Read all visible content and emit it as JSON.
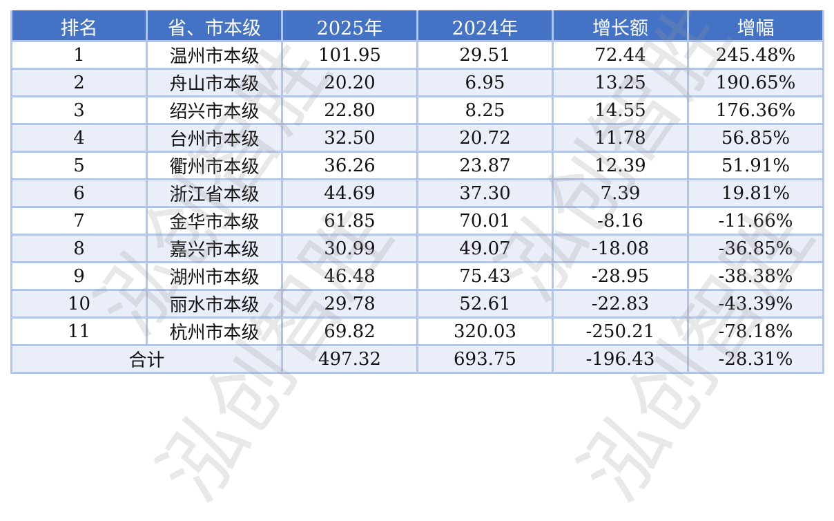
{
  "headers": [
    "排名",
    "省、市本级",
    "2025年",
    "2024年",
    "增长额",
    "增幅"
  ],
  "rows": [
    [
      "1",
      "温州市本级",
      "101.95",
      "29.51",
      "72.44",
      "245.48%"
    ],
    [
      "2",
      "舟山市本级",
      "20.20",
      "6.95",
      "13.25",
      "190.65%"
    ],
    [
      "3",
      "绍兴市本级",
      "22.80",
      "8.25",
      "14.55",
      "176.36%"
    ],
    [
      "4",
      "台州市本级",
      "32.50",
      "20.72",
      "11.78",
      "56.85%"
    ],
    [
      "5",
      "衢州市本级",
      "36.26",
      "23.87",
      "12.39",
      "51.91%"
    ],
    [
      "6",
      "浙江省本级",
      "44.69",
      "37.30",
      "7.39",
      "19.81%"
    ],
    [
      "7",
      "金华市本级",
      "61.85",
      "70.01",
      "-8.16",
      "-11.66%"
    ],
    [
      "8",
      "嘉兴市本级",
      "30.99",
      "49.07",
      "-18.08",
      "-36.85%"
    ],
    [
      "9",
      "湖州市本级",
      "46.48",
      "75.43",
      "-28.95",
      "-38.38%"
    ],
    [
      "10",
      "丽水市本级",
      "29.78",
      "52.61",
      "-22.83",
      "-43.39%"
    ],
    [
      "11",
      "杭州市本级",
      "69.82",
      "320.03",
      "-250.21",
      "-78.18%"
    ]
  ],
  "total": {
    "label": "合计",
    "values": [
      "497.32",
      "693.75",
      "-196.43",
      "-28.31%"
    ]
  },
  "watermark": "泓创智胜",
  "colors": {
    "header_bg": "#4472C4",
    "border": "#B4C6E7",
    "alt_row": "#E9EEF8"
  }
}
